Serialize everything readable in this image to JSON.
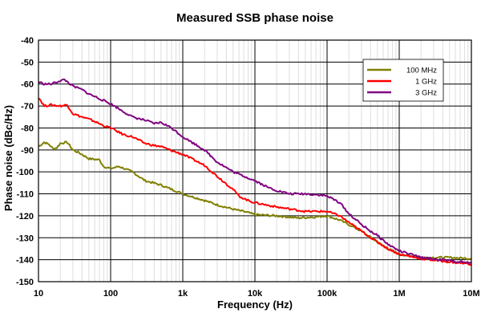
{
  "chart_data": {
    "type": "line",
    "title": "Measured SSB phase noise",
    "xlabel": "Frequency (Hz)",
    "ylabel": "Phase noise (dBc/Hz)",
    "xscale": "log",
    "xlim": [
      10,
      10000000
    ],
    "ylim": [
      -150,
      -40
    ],
    "x_ticks": [
      {
        "value": 10,
        "label": "10"
      },
      {
        "value": 100,
        "label": "100"
      },
      {
        "value": 1000,
        "label": "1k"
      },
      {
        "value": 10000,
        "label": "10k"
      },
      {
        "value": 100000,
        "label": "100k"
      },
      {
        "value": 1000000,
        "label": "1M"
      },
      {
        "value": 10000000,
        "label": "10M"
      }
    ],
    "y_ticks": [
      {
        "value": -40,
        "label": "-40"
      },
      {
        "value": -50,
        "label": "-50"
      },
      {
        "value": -60,
        "label": "-60"
      },
      {
        "value": -70,
        "label": "-70"
      },
      {
        "value": -80,
        "label": "-80"
      },
      {
        "value": -90,
        "label": "-90"
      },
      {
        "value": -100,
        "label": "-100"
      },
      {
        "value": -110,
        "label": "-110"
      },
      {
        "value": -120,
        "label": "-120"
      },
      {
        "value": -130,
        "label": "-130"
      },
      {
        "value": -140,
        "label": "-140"
      },
      {
        "value": -150,
        "label": "-150"
      }
    ],
    "grid": true,
    "legend_position": "top-right",
    "series": [
      {
        "name": "100 MHz",
        "color": "#808000",
        "points": [
          [
            10,
            -88.5
          ],
          [
            12,
            -86.5
          ],
          [
            14,
            -87.5
          ],
          [
            16,
            -89.5
          ],
          [
            18,
            -89
          ],
          [
            20,
            -87
          ],
          [
            25,
            -86.5
          ],
          [
            30,
            -90
          ],
          [
            40,
            -92
          ],
          [
            50,
            -94
          ],
          [
            70,
            -94.5
          ],
          [
            80,
            -97.5
          ],
          [
            100,
            -98.5
          ],
          [
            130,
            -97.5
          ],
          [
            200,
            -100
          ],
          [
            300,
            -104
          ],
          [
            500,
            -106
          ],
          [
            1000,
            -110
          ],
          [
            2000,
            -113
          ],
          [
            3000,
            -115
          ],
          [
            5000,
            -117
          ],
          [
            8000,
            -118.5
          ],
          [
            10000,
            -119.5
          ],
          [
            20000,
            -120
          ],
          [
            40000,
            -121
          ],
          [
            70000,
            -120.5
          ],
          [
            100000,
            -120
          ],
          [
            150000,
            -122
          ],
          [
            200000,
            -124
          ],
          [
            300000,
            -127
          ],
          [
            500000,
            -132
          ],
          [
            700000,
            -135
          ],
          [
            1000000,
            -137.5
          ],
          [
            2000000,
            -139
          ],
          [
            5000000,
            -139
          ],
          [
            10000000,
            -139.5
          ]
        ]
      },
      {
        "name": "1 GHz",
        "color": "#ff0000",
        "points": [
          [
            10,
            -66
          ],
          [
            12,
            -70
          ],
          [
            15,
            -69.5
          ],
          [
            20,
            -70
          ],
          [
            25,
            -69.5
          ],
          [
            30,
            -73.5
          ],
          [
            40,
            -75
          ],
          [
            50,
            -76
          ],
          [
            60,
            -77
          ],
          [
            80,
            -79
          ],
          [
            100,
            -80
          ],
          [
            150,
            -83
          ],
          [
            200,
            -84
          ],
          [
            300,
            -87
          ],
          [
            400,
            -88
          ],
          [
            500,
            -88.5
          ],
          [
            800,
            -91
          ],
          [
            1000,
            -92
          ],
          [
            2000,
            -97
          ],
          [
            3000,
            -102
          ],
          [
            5000,
            -108
          ],
          [
            6000,
            -111
          ],
          [
            8000,
            -113
          ],
          [
            10000,
            -114
          ],
          [
            20000,
            -116
          ],
          [
            50000,
            -118
          ],
          [
            100000,
            -118
          ],
          [
            150000,
            -120
          ],
          [
            200000,
            -123
          ],
          [
            300000,
            -127
          ],
          [
            500000,
            -132
          ],
          [
            700000,
            -135
          ],
          [
            1000000,
            -137.5
          ],
          [
            2000000,
            -139.5
          ],
          [
            5000000,
            -141
          ],
          [
            10000000,
            -142
          ]
        ]
      },
      {
        "name": "3 GHz",
        "color": "#800080",
        "points": [
          [
            10,
            -59
          ],
          [
            12,
            -60
          ],
          [
            15,
            -60
          ],
          [
            20,
            -58.5
          ],
          [
            23,
            -58
          ],
          [
            30,
            -61
          ],
          [
            40,
            -62.5
          ],
          [
            50,
            -64.5
          ],
          [
            80,
            -67.5
          ],
          [
            100,
            -69
          ],
          [
            150,
            -72.5
          ],
          [
            200,
            -75
          ],
          [
            300,
            -76.5
          ],
          [
            400,
            -78
          ],
          [
            500,
            -77.5
          ],
          [
            700,
            -80
          ],
          [
            1000,
            -84
          ],
          [
            2000,
            -90
          ],
          [
            3000,
            -95.5
          ],
          [
            5000,
            -100
          ],
          [
            10000,
            -104
          ],
          [
            15000,
            -107
          ],
          [
            20000,
            -108.5
          ],
          [
            30000,
            -110
          ],
          [
            50000,
            -110
          ],
          [
            80000,
            -110.5
          ],
          [
            100000,
            -111
          ],
          [
            150000,
            -114
          ],
          [
            200000,
            -119
          ],
          [
            300000,
            -124
          ],
          [
            400000,
            -127
          ],
          [
            500000,
            -129
          ],
          [
            700000,
            -133
          ],
          [
            1000000,
            -136
          ],
          [
            2000000,
            -139
          ],
          [
            5000000,
            -140.5
          ],
          [
            10000000,
            -141.5
          ]
        ]
      }
    ]
  }
}
